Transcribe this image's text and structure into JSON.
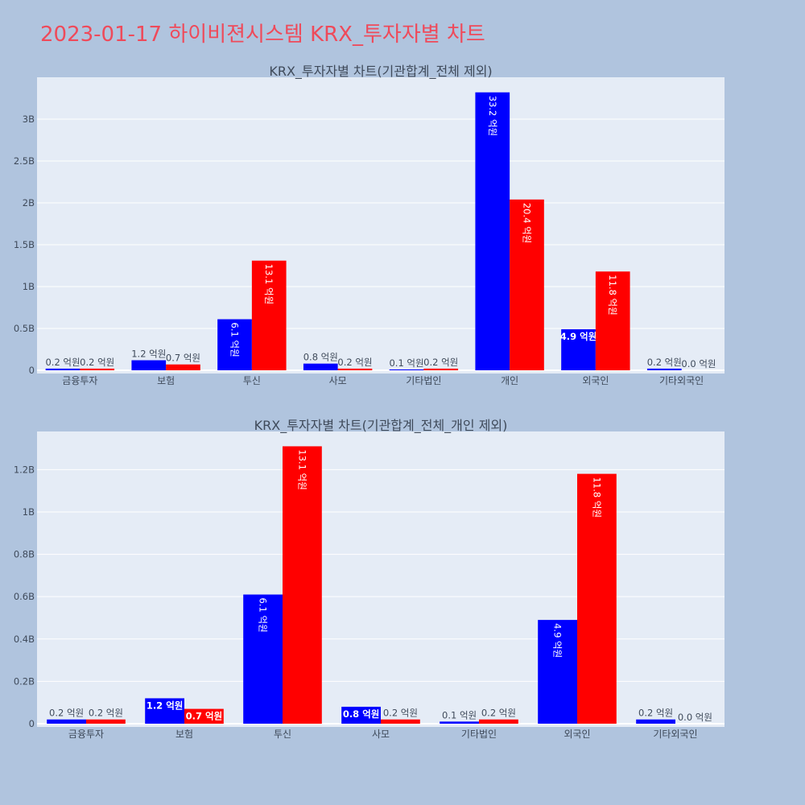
{
  "page": {
    "title": "2023-01-17 하이비젼시스템 KRX_투자자별 차트"
  },
  "colors": {
    "buy": "#0000ff",
    "sell": "#ff0000",
    "plot_bg": "#e5ecf6",
    "page_bg": "#b0c4de",
    "title": "#ef4a5a"
  },
  "chart_data": [
    {
      "type": "bar",
      "title": "KRX_투자자별 차트(기관합계_전체 제외)",
      "categories": [
        "금융투자",
        "보험",
        "투신",
        "사모",
        "기타법인",
        "개인",
        "외국인",
        "기타외국인"
      ],
      "series": [
        {
          "values": [
            0.02,
            0.12,
            0.61,
            0.08,
            0.01,
            3.32,
            0.49,
            0.02
          ],
          "labels": [
            "0.2 억원",
            "1.2 억원",
            "6.1 억원",
            "0.8 억원",
            "0.1 억원",
            "33.2 억원",
            "4.9 억원",
            "0.2 억원"
          ]
        },
        {
          "values": [
            0.02,
            0.07,
            1.31,
            0.02,
            0.02,
            2.04,
            1.18,
            0.0
          ],
          "labels": [
            "0.2 억원",
            "0.7 억원",
            "13.1 억원",
            "0.2 억원",
            "0.2 억원",
            "20.4 억원",
            "11.8 억원",
            "0.0 억원"
          ]
        }
      ],
      "ylim": [
        0,
        3.5
      ],
      "yticks": [
        0,
        0.5,
        1,
        1.5,
        2,
        2.5,
        3
      ],
      "ytick_labels": [
        "0",
        "0.5B",
        "1B",
        "1.5B",
        "2B",
        "2.5B",
        "3B"
      ]
    },
    {
      "type": "bar",
      "title": "KRX_투자자별 차트(기관합계_전체_개인 제외)",
      "categories": [
        "금융투자",
        "보험",
        "투신",
        "사모",
        "기타법인",
        "외국인",
        "기타외국인"
      ],
      "series": [
        {
          "values": [
            0.02,
            0.12,
            0.61,
            0.08,
            0.01,
            0.49,
            0.02
          ],
          "labels": [
            "0.2 억원",
            "1.2 억원",
            "6.1 억원",
            "0.8 억원",
            "0.1 억원",
            "4.9 억원",
            "0.2 억원"
          ]
        },
        {
          "values": [
            0.02,
            0.07,
            1.31,
            0.02,
            0.02,
            1.18,
            0.0
          ],
          "labels": [
            "0.2 억원",
            "0.7 억원",
            "13.1 억원",
            "0.2 억원",
            "0.2 억원",
            "11.8 억원",
            "0.0 억원"
          ]
        }
      ],
      "ylim": [
        0,
        1.38
      ],
      "yticks": [
        0,
        0.2,
        0.4,
        0.6,
        0.8,
        1,
        1.2
      ],
      "ytick_labels": [
        "0",
        "0.2B",
        "0.4B",
        "0.6B",
        "0.8B",
        "1B",
        "1.2B"
      ]
    }
  ]
}
